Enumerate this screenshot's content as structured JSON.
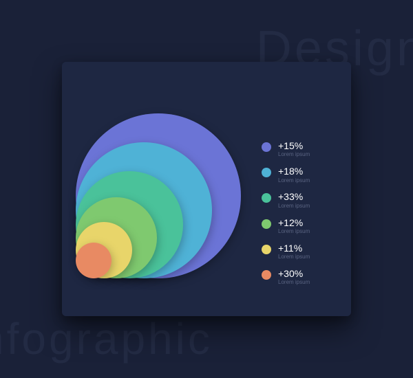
{
  "background": {
    "page_color": "#1a2138",
    "card_color": "#1e2742",
    "text_top": "Design",
    "text_bottom": "nfographic",
    "text_color": "#232b44"
  },
  "circles": [
    {
      "color": "#6b74d6",
      "diameter": 240
    },
    {
      "color": "#4fb2d6",
      "diameter": 198
    },
    {
      "color": "#4ac29a",
      "diameter": 156
    },
    {
      "color": "#7fc96f",
      "diameter": 118
    },
    {
      "color": "#e8d56a",
      "diameter": 82
    },
    {
      "color": "#e88a63",
      "diameter": 52
    }
  ],
  "legend": [
    {
      "color": "#6b74d6",
      "value": "+15%",
      "sub": "Lorem ipsum"
    },
    {
      "color": "#4fb2d6",
      "value": "+18%",
      "sub": "Lorem ipsum"
    },
    {
      "color": "#4ac29a",
      "value": "+33%",
      "sub": "Lorem ipsum"
    },
    {
      "color": "#7fc96f",
      "value": "+12%",
      "sub": "Lorem ipsum"
    },
    {
      "color": "#e8d56a",
      "value": "+11%",
      "sub": "Lorem ipsum"
    },
    {
      "color": "#e88a63",
      "value": "+30%",
      "sub": "Lorem ipsum"
    }
  ]
}
